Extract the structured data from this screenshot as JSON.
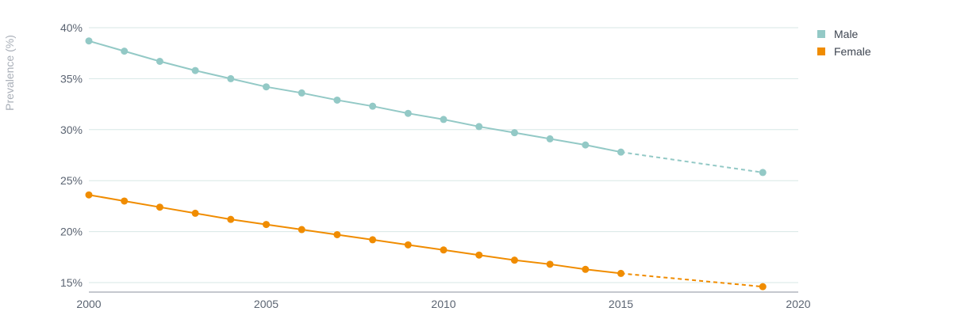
{
  "chart_data": {
    "type": "line",
    "title": "",
    "xlabel": "",
    "ylabel": "Prevalence (%)",
    "xlim": [
      2000,
      2020
    ],
    "ylim": [
      14,
      40
    ],
    "x_ticks": [
      2000,
      2005,
      2010,
      2015,
      2020
    ],
    "x_tick_labels": [
      "2000",
      "2005",
      "2010",
      "2015",
      "2020"
    ],
    "y_ticks": [
      15,
      20,
      25,
      30,
      35,
      40
    ],
    "y_tick_labels": [
      "15%",
      "20%",
      "25%",
      "30%",
      "35%",
      "40%"
    ],
    "grid": "horizontal",
    "legend_position": "top-right",
    "series": [
      {
        "name": "Male",
        "color": "#93c9c6",
        "x": [
          2000,
          2001,
          2002,
          2003,
          2004,
          2005,
          2006,
          2007,
          2008,
          2009,
          2010,
          2011,
          2012,
          2013,
          2014,
          2015
        ],
        "values": [
          38.7,
          37.7,
          36.7,
          35.8,
          35.0,
          34.2,
          33.6,
          32.9,
          32.3,
          31.6,
          31.0,
          30.3,
          29.7,
          29.1,
          28.5,
          27.8
        ],
        "projection": {
          "x": [
            2015,
            2019
          ],
          "values": [
            27.8,
            25.8
          ]
        }
      },
      {
        "name": "Female",
        "color": "#f08c00",
        "x": [
          2000,
          2001,
          2002,
          2003,
          2004,
          2005,
          2006,
          2007,
          2008,
          2009,
          2010,
          2011,
          2012,
          2013,
          2014,
          2015
        ],
        "values": [
          23.6,
          23.0,
          22.4,
          21.8,
          21.2,
          20.7,
          20.2,
          19.7,
          19.2,
          18.7,
          18.2,
          17.7,
          17.2,
          16.8,
          16.3,
          15.9
        ],
        "projection": {
          "x": [
            2015,
            2019
          ],
          "values": [
            15.9,
            14.6
          ]
        }
      }
    ]
  }
}
